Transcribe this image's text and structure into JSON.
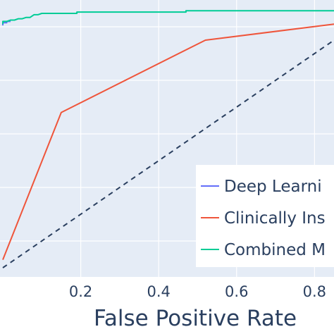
{
  "chart_data": {
    "type": "line",
    "xlabel": "False Positive Rate",
    "ylabel": "",
    "xlim": [
      0,
      0.85
    ],
    "ylim": [
      0,
      1
    ],
    "grid": true,
    "legend_position": "bottom-right",
    "x_ticks": [
      "0.2",
      "0.4",
      "0.6",
      "0.8"
    ],
    "x_tick_values": [
      0.2,
      0.4,
      0.6,
      0.8
    ],
    "series": [
      {
        "name": "Deep Learni",
        "color": "#636efa",
        "x": [
          0,
          0.0,
          0.01,
          0.01,
          0.02
        ],
        "y": [
          0.905,
          0.915,
          0.915,
          0.92,
          0.92
        ]
      },
      {
        "name": "Clinically Ins",
        "color": "#ef553b",
        "x": [
          0,
          0.15,
          0.52,
          0.85
        ],
        "y": [
          0.03,
          0.58,
          0.85,
          0.91
        ]
      },
      {
        "name": "Combined M",
        "color": "#00cc96",
        "x": [
          0,
          0.0,
          0.01,
          0.02,
          0.03,
          0.04,
          0.05,
          0.06,
          0.07,
          0.08,
          0.09,
          0.1,
          0.19,
          0.19,
          0.47,
          0.47,
          0.85
        ],
        "y": [
          0.91,
          0.92,
          0.92,
          0.925,
          0.925,
          0.93,
          0.93,
          0.935,
          0.935,
          0.945,
          0.945,
          0.95,
          0.95,
          0.955,
          0.955,
          0.96,
          0.96
        ]
      },
      {
        "name": "",
        "color": "#2a3f5f",
        "dash": true,
        "x": [
          0,
          0.85
        ],
        "y": [
          0,
          0.85
        ]
      }
    ]
  }
}
